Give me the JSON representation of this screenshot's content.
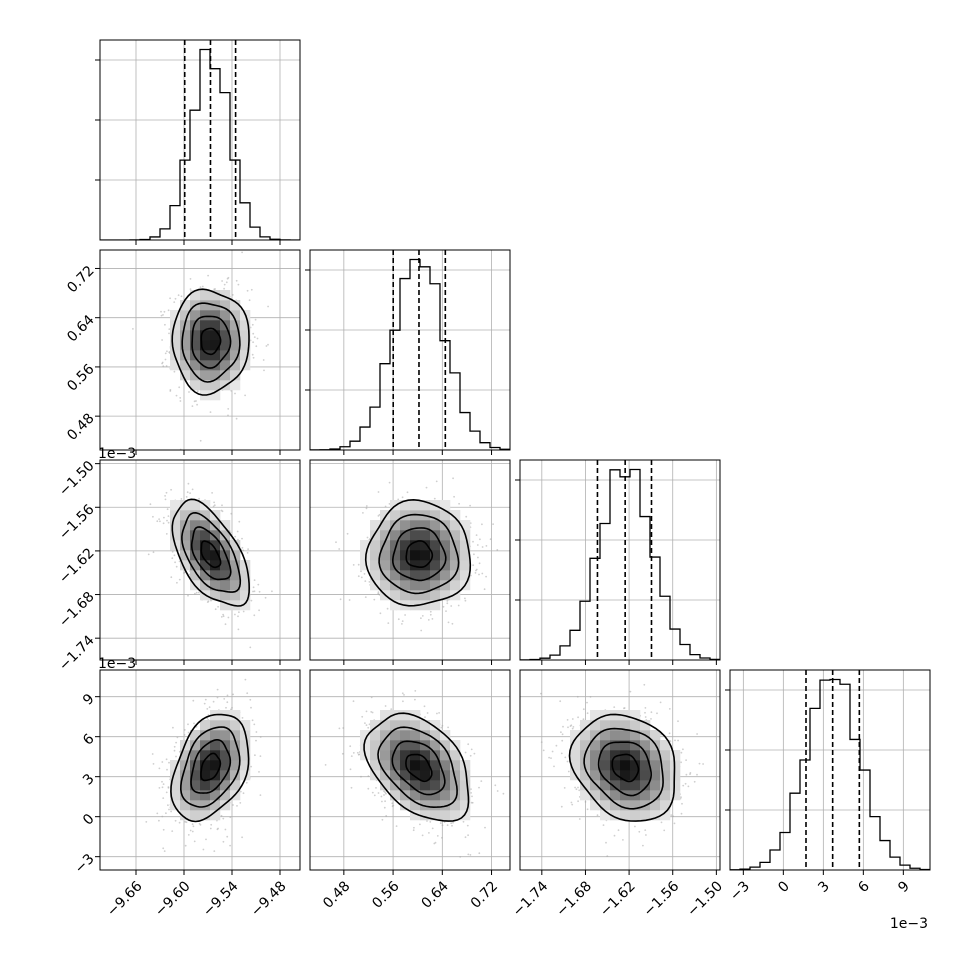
{
  "chart_data": {
    "type": "corner",
    "parameters": [
      {
        "range": [
          -9.705,
          -9.455
        ],
        "ticks": [
          -9.66,
          -9.6,
          -9.54,
          -9.48
        ],
        "tick_labels": [
          "−9.66",
          "−9.60",
          "−9.54",
          "−9.48"
        ],
        "quantiles": [
          -9.5991,
          -9.5669,
          -9.5355
        ],
        "mean": -9.567,
        "sd": 0.024,
        "multiplier_label": ""
      },
      {
        "range": [
          0.425,
          0.75
        ],
        "ticks": [
          0.48,
          0.56,
          0.64,
          0.72
        ],
        "tick_labels": [
          "0.48",
          "0.56",
          "0.64",
          "0.72"
        ],
        "quantiles": [
          0.5602,
          0.6021,
          0.6449
        ],
        "mean": 0.602,
        "sd": 0.042,
        "multiplier_label": ""
      },
      {
        "range": [
          -1.77,
          -1.495
        ],
        "ticks": [
          -1.74,
          -1.68,
          -1.62,
          -1.56,
          -1.5
        ],
        "tick_labels": [
          "−1.74",
          "−1.68",
          "−1.62",
          "−1.56",
          "−1.50"
        ],
        "quantiles": [
          -1.6635,
          -1.6254,
          -1.5892
        ],
        "mean": -1.625,
        "sd": 0.036,
        "multiplier_label": "1e−3"
      },
      {
        "range": [
          -4.0,
          11.0
        ],
        "ticks": [
          -3,
          0,
          3,
          6,
          9
        ],
        "tick_labels": [
          "−3",
          "0",
          "3",
          "6",
          "9"
        ],
        "quantiles": [
          1.7,
          3.7,
          5.7
        ],
        "mean": 3.7,
        "sd": 2.0,
        "multiplier_label": "1e−3"
      }
    ],
    "correlations": [
      {
        "pair": [
          0,
          1
        ],
        "r": 0.0
      },
      {
        "pair": [
          0,
          2
        ],
        "r": -0.55
      },
      {
        "pair": [
          0,
          3
        ],
        "r": 0.35
      },
      {
        "pair": [
          1,
          2
        ],
        "r": 0.0
      },
      {
        "pair": [
          1,
          3
        ],
        "r": -0.4
      },
      {
        "pair": [
          2,
          3
        ],
        "r": -0.2
      }
    ],
    "histogram_bins": 20,
    "grid": true
  }
}
